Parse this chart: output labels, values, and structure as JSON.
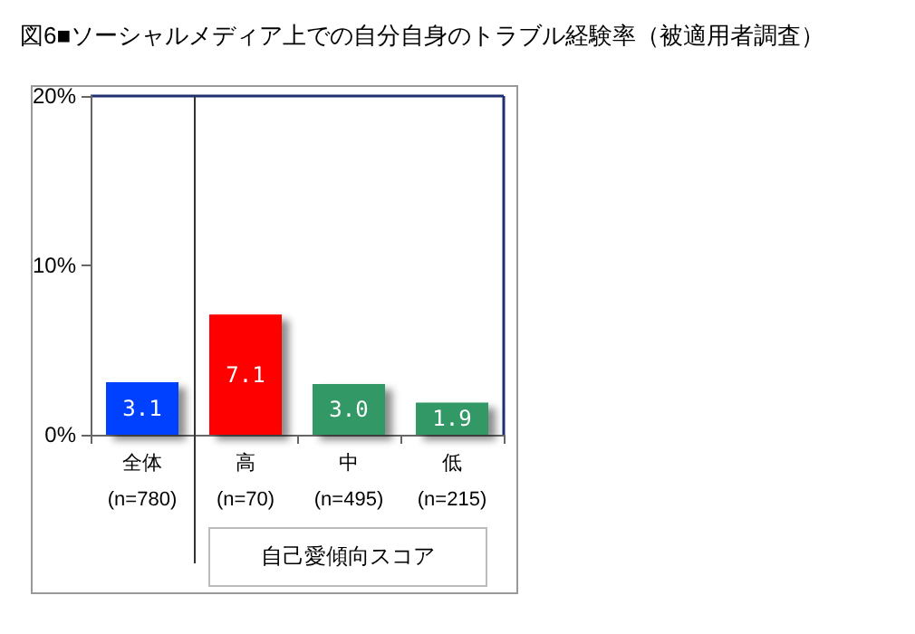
{
  "chart_data": {
    "type": "bar",
    "title": "図6■ソーシャルメディア上での自分自身のトラブル経験率（被適用者調査）",
    "categories": [
      "全体\n(n=780)",
      "高\n(n=70)",
      "中\n(n=495)",
      "低\n(n=215)"
    ],
    "values": [
      3.1,
      7.1,
      3.0,
      1.9
    ],
    "colors": [
      "#0040ff",
      "#ff0000",
      "#339966",
      "#339966"
    ],
    "ylim": [
      0,
      20
    ],
    "yticks": [
      {
        "value": 0,
        "label": "0%"
      },
      {
        "value": 10,
        "label": "10%"
      },
      {
        "value": 20,
        "label": "20%"
      }
    ],
    "value_labels": [
      "3.1",
      "7.1",
      "3.0",
      "1.9"
    ],
    "grid": false,
    "annotations": [
      "自己愛傾向スコア"
    ]
  }
}
